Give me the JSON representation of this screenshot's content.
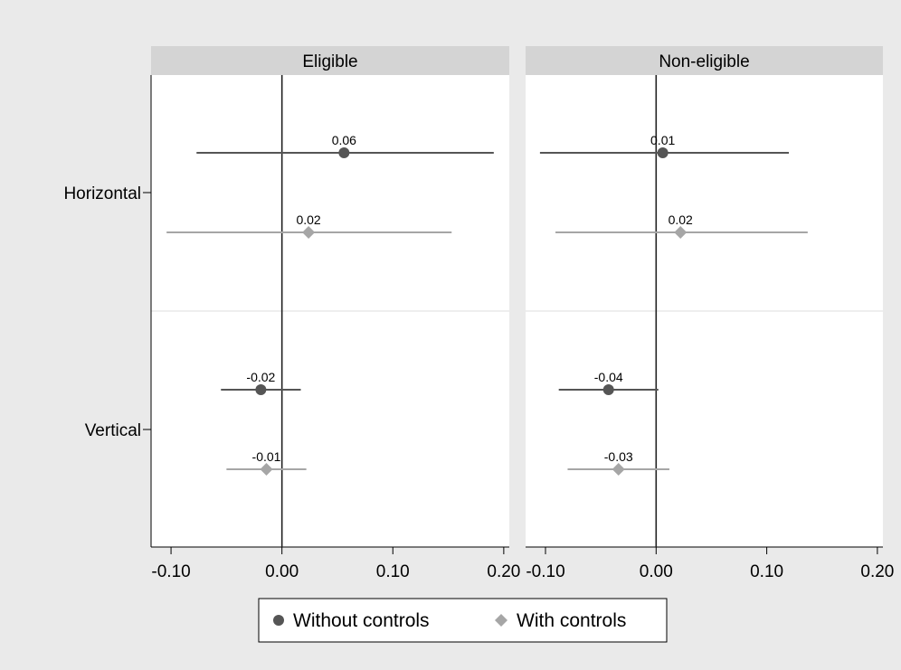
{
  "chart_data": {
    "type": "scatter",
    "subtype": "coefficient plot with confidence intervals, faceted",
    "categories": [
      "Horizontal",
      "Vertical"
    ],
    "x_ticks": [
      -0.1,
      0.0,
      0.1,
      0.2
    ],
    "x_tick_labels": [
      "-0.10",
      "0.00",
      "0.10",
      "0.20"
    ],
    "xlim": [
      -0.118,
      0.205
    ],
    "reference_line_x": 0,
    "grid": false,
    "legend_position": "bottom",
    "legend": [
      {
        "name": "Without controls",
        "marker": "circle",
        "color": "#555555"
      },
      {
        "name": "With controls",
        "marker": "diamond",
        "color": "#a6a6a6"
      }
    ],
    "panels": [
      {
        "title": "Eligible",
        "series": [
          {
            "name": "Without controls",
            "points": [
              {
                "category": "Horizontal",
                "estimate": 0.056,
                "label": "0.06",
                "ci_low": -0.077,
                "ci_high": 0.191
              },
              {
                "category": "Vertical",
                "estimate": -0.019,
                "label": "-0.02",
                "ci_low": -0.055,
                "ci_high": 0.017
              }
            ]
          },
          {
            "name": "With controls",
            "points": [
              {
                "category": "Horizontal",
                "estimate": 0.024,
                "label": "0.02",
                "ci_low": -0.104,
                "ci_high": 0.153
              },
              {
                "category": "Vertical",
                "estimate": -0.014,
                "label": "-0.01",
                "ci_low": -0.05,
                "ci_high": 0.022
              }
            ]
          }
        ]
      },
      {
        "title": "Non-eligible",
        "series": [
          {
            "name": "Without controls",
            "points": [
              {
                "category": "Horizontal",
                "estimate": 0.006,
                "label": "0.01",
                "ci_low": -0.105,
                "ci_high": 0.12
              },
              {
                "category": "Vertical",
                "estimate": -0.043,
                "label": "-0.04",
                "ci_low": -0.088,
                "ci_high": 0.002
              }
            ]
          },
          {
            "name": "With controls",
            "points": [
              {
                "category": "Horizontal",
                "estimate": 0.022,
                "label": "0.02",
                "ci_low": -0.091,
                "ci_high": 0.137
              },
              {
                "category": "Vertical",
                "estimate": -0.034,
                "label": "-0.03",
                "ci_low": -0.08,
                "ci_high": 0.012
              }
            ]
          }
        ]
      }
    ]
  }
}
